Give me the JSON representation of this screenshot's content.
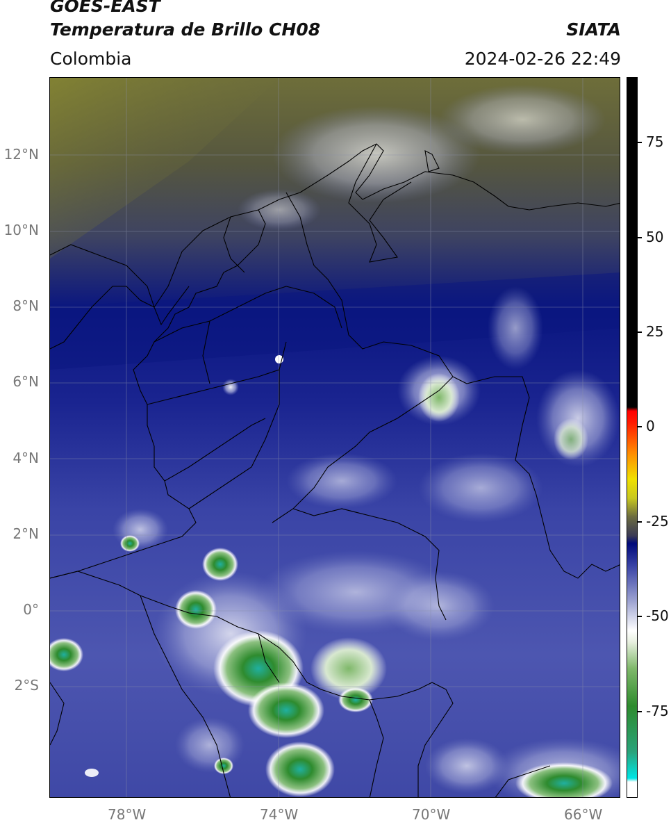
{
  "header": {
    "title_line1": "GOES-EAST",
    "title_line2": "Temperatura de Brillo CH08",
    "source": "SIATA",
    "region": "Colombia",
    "datetime": "2024-02-26 22:49"
  },
  "map": {
    "lat_labels": [
      {
        "label": "12°N",
        "value": 12
      },
      {
        "label": "10°N",
        "value": 10
      },
      {
        "label": "8°N",
        "value": 8
      },
      {
        "label": "6°N",
        "value": 6
      },
      {
        "label": "4°N",
        "value": 4
      },
      {
        "label": "2°N",
        "value": 2
      },
      {
        "label": "0°",
        "value": 0
      },
      {
        "label": "2°S",
        "value": -2
      }
    ],
    "lon_labels": [
      {
        "label": "78°W",
        "value": -78
      },
      {
        "label": "74°W",
        "value": -74
      },
      {
        "label": "70°W",
        "value": -70
      },
      {
        "label": "66°W",
        "value": -66
      }
    ],
    "extent": {
      "lon_min": -80.1,
      "lon_max": -65.1,
      "lat_min": -4.8,
      "lat_max": 14.2
    }
  },
  "colorbar": {
    "ticks": [
      {
        "label": "75",
        "value": 75
      },
      {
        "label": "50",
        "value": 50
      },
      {
        "label": "25",
        "value": 25
      },
      {
        "label": "0",
        "value": 0
      },
      {
        "label": "-25",
        "value": -25
      },
      {
        "label": "-50",
        "value": -50
      },
      {
        "label": "-75",
        "value": -75
      }
    ],
    "range": [
      -94,
      96
    ],
    "stops": [
      {
        "value": -94,
        "color": "#ffffff"
      },
      {
        "value": -90,
        "color": "#ffffff"
      },
      {
        "value": -89,
        "color": "#00e5e5"
      },
      {
        "value": -82,
        "color": "#2aa37a"
      },
      {
        "value": -70,
        "color": "#2e8b2e"
      },
      {
        "value": -60,
        "color": "#7fb86a"
      },
      {
        "value": -53,
        "color": "#e8f0e0"
      },
      {
        "value": -50,
        "color": "#ffffff"
      },
      {
        "value": -42,
        "color": "#9aa0d0"
      },
      {
        "value": -33,
        "color": "#3a44a6"
      },
      {
        "value": -27,
        "color": "#000a7a"
      },
      {
        "value": -25,
        "color": "#3a3a55"
      },
      {
        "value": -20,
        "color": "#6b6b40"
      },
      {
        "value": -15,
        "color": "#c8c820"
      },
      {
        "value": -10,
        "color": "#f0e000"
      },
      {
        "value": -3,
        "color": "#ff8a00"
      },
      {
        "value": 5,
        "color": "#ff1a00"
      },
      {
        "value": 8,
        "color": "#ff0000"
      },
      {
        "value": 9,
        "color": "#000000"
      },
      {
        "value": 96,
        "color": "#000000"
      }
    ]
  }
}
